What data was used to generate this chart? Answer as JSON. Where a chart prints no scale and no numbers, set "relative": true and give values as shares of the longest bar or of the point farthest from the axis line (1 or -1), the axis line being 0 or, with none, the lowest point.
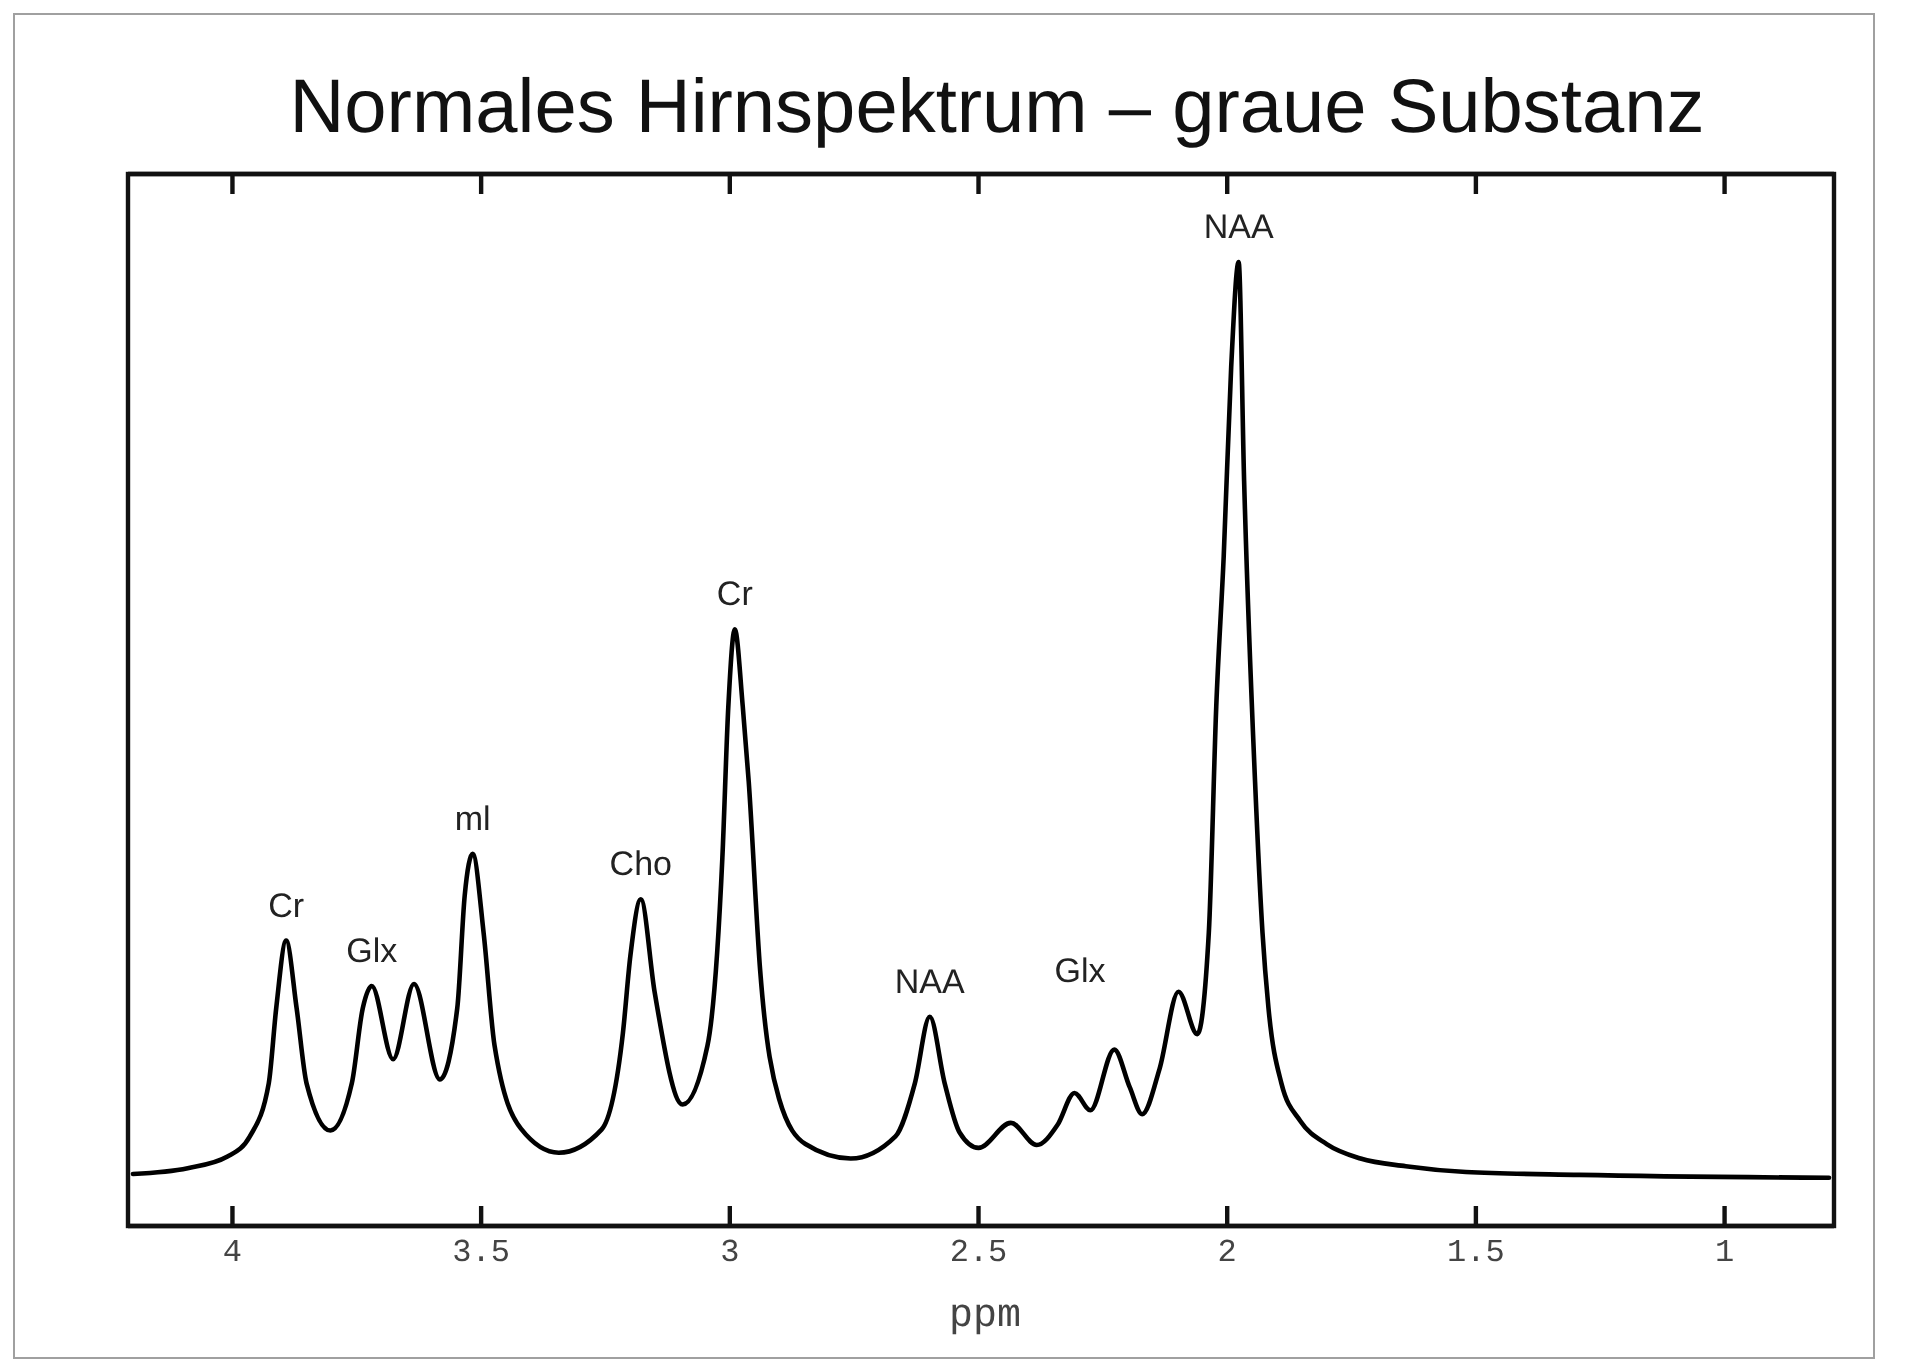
{
  "chart_data": {
    "type": "line",
    "title": "Normales Hirnspektrum – graue Substanz",
    "xlabel": "ppm",
    "relative": true,
    "x": [
      4.2,
      4.09,
      4.01,
      3.965,
      3.927,
      3.912,
      3.892,
      3.871,
      3.851,
      3.803,
      3.76,
      3.738,
      3.72,
      3.677,
      3.635,
      3.583,
      3.548,
      3.533,
      3.517,
      3.495,
      3.473,
      3.42,
      3.344,
      3.258,
      3.215,
      3.2,
      3.179,
      3.151,
      3.095,
      3.045,
      3.015,
      3.003,
      2.99,
      2.974,
      2.962,
      2.939,
      2.901,
      2.848,
      2.757,
      2.667,
      2.628,
      2.598,
      2.568,
      2.538,
      2.5,
      2.435,
      2.383,
      2.341,
      2.307,
      2.275,
      2.227,
      2.196,
      2.171,
      2.136,
      2.098,
      2.06,
      2.037,
      2.022,
      2.007,
      1.992,
      1.977,
      1.966,
      1.944,
      1.929,
      1.917,
      1.891,
      1.853,
      1.8,
      1.732,
      1.641,
      1.52,
      1.292,
      0.79
    ],
    "series": [
      {
        "color": "#000000",
        "values": [
          0.054,
          0.06,
          0.072,
          0.093,
          0.148,
          0.226,
          0.296,
          0.226,
          0.148,
          0.099,
          0.148,
          0.226,
          0.249,
          0.173,
          0.251,
          0.152,
          0.226,
          0.343,
          0.386,
          0.304,
          0.187,
          0.101,
          0.076,
          0.1,
          0.2,
          0.28,
          0.339,
          0.242,
          0.126,
          0.187,
          0.382,
          0.539,
          0.619,
          0.539,
          0.461,
          0.265,
          0.132,
          0.085,
          0.07,
          0.093,
          0.148,
          0.217,
          0.148,
          0.097,
          0.081,
          0.107,
          0.084,
          0.105,
          0.138,
          0.12,
          0.183,
          0.144,
          0.116,
          0.163,
          0.243,
          0.199,
          0.304,
          0.539,
          0.695,
          0.891,
          1,
          0.773,
          0.461,
          0.304,
          0.226,
          0.148,
          0.109,
          0.085,
          0.07,
          0.062,
          0.056,
          0.053,
          0.05
        ]
      }
    ],
    "xlim": [
      4.21,
      0.78
    ],
    "xticks": [
      4,
      3.5,
      3,
      2.5,
      2,
      1.5,
      1
    ],
    "annotations": [
      {
        "text": "Cr",
        "x": 3.892,
        "y": 0.296
      },
      {
        "text": "Glx",
        "x": 3.72,
        "y": 0.249
      },
      {
        "text": "ml",
        "x": 3.517,
        "y": 0.386
      },
      {
        "text": "Cho",
        "x": 3.179,
        "y": 0.339
      },
      {
        "text": "Cr",
        "x": 2.99,
        "y": 0.619
      },
      {
        "text": "NAA",
        "x": 2.598,
        "y": 0.217
      },
      "Glx",
      {
        "text": "NAA",
        "x": 1.977,
        "y": 1
      }
    ]
  }
}
